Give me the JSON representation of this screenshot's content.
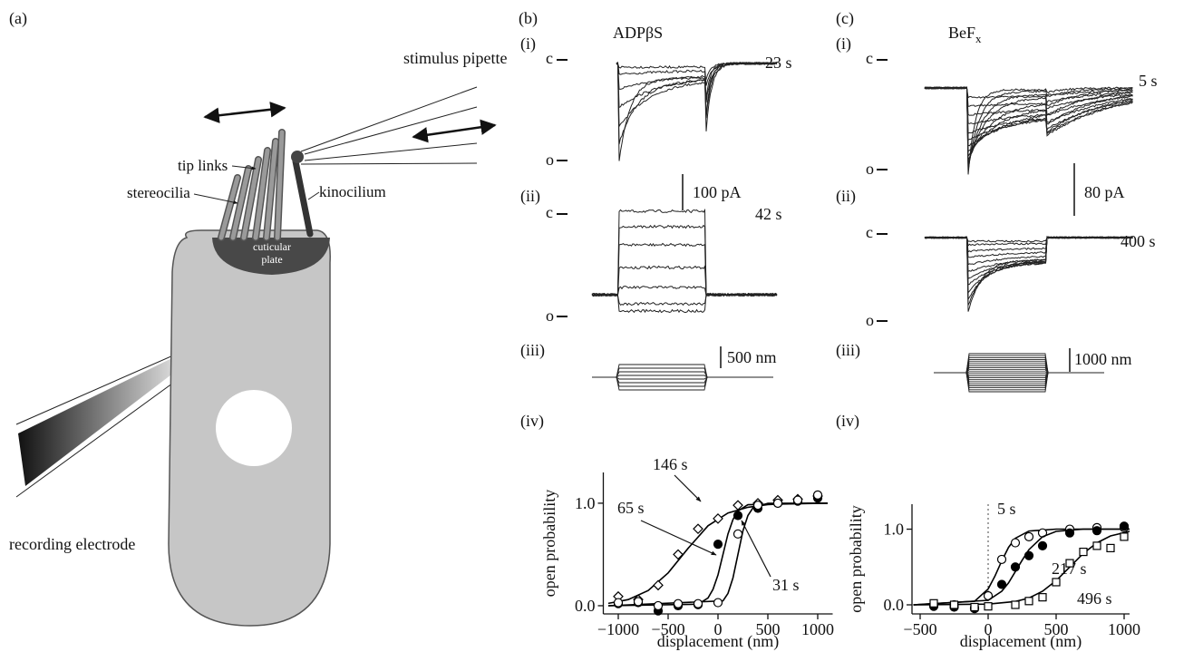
{
  "panel_a": {
    "label": "(a)",
    "stimulus_pipette": "stimulus pipette",
    "tip_links": "tip links",
    "stereocilia": "stereocilia",
    "kinocilium": "kinocilium",
    "cuticular_plate": [
      "cuticular",
      "plate"
    ],
    "recording_electrode": "recording electrode"
  },
  "panel_b": {
    "label": "(b)",
    "i": {
      "label": "(i)",
      "drug": "ADPβS",
      "closed": "c",
      "open": "o",
      "time": "23 s"
    },
    "scale_current": "100 pA",
    "ii": {
      "label": "(ii)",
      "closed": "c",
      "open": "o",
      "time": "42 s"
    },
    "iii": {
      "label": "(iii)",
      "scale": "500 nm"
    },
    "iv": {
      "label": "(iv)"
    }
  },
  "panel_c": {
    "label": "(c)",
    "i": {
      "label": "(i)",
      "drug": {
        "main": "BeF",
        "sub": "x"
      },
      "closed": "c",
      "open": "o",
      "time": "5 s"
    },
    "scale_current": "80 pA",
    "ii": {
      "label": "(ii)",
      "closed": "c",
      "open": "o",
      "time": "400 s"
    },
    "iii": {
      "label": "(iii)",
      "scale": "1000 nm"
    },
    "iv": {
      "label": "(iv)"
    }
  },
  "chart_data": [
    {
      "type": "scatter",
      "xlabel": "displacement (nm)",
      "ylabel": "open probability",
      "xlim": [
        -1150,
        1150
      ],
      "ylim": [
        -0.08,
        1.3
      ],
      "xticks": [
        {
          "value": -1000,
          "label": "−1000"
        },
        {
          "value": -500,
          "label": "−500"
        },
        0,
        500,
        1000
      ],
      "yticks": [
        {
          "value": 0,
          "label": "0.0"
        },
        {
          "value": 1,
          "label": "1.0"
        }
      ],
      "series": [
        {
          "name": "146 s",
          "color": "#000000",
          "marker": "diamond",
          "x": [
            -1000,
            -800,
            -600,
            -400,
            -200,
            0,
            200,
            400,
            600,
            800,
            1000
          ],
          "values": [
            0.09,
            0.06,
            0.2,
            0.5,
            0.75,
            0.85,
            0.98,
            1.0,
            1.03,
            1.04,
            1.07
          ],
          "fit_x": [
            -1100,
            -900,
            -700,
            -500,
            -300,
            -100,
            100,
            300,
            500,
            700,
            900,
            1100
          ],
          "fit_values": [
            0.023,
            0.06,
            0.148,
            0.32,
            0.56,
            0.78,
            0.905,
            0.96,
            0.986,
            0.995,
            0.998,
            0.999
          ]
        },
        {
          "name": "65 s",
          "color": "#000000",
          "marker": "circle-filled",
          "x": [
            -1000,
            -800,
            -600,
            -400,
            -200,
            0,
            200,
            400,
            600,
            800,
            1000
          ],
          "values": [
            0.02,
            0.03,
            -0.05,
            0.0,
            0.01,
            0.6,
            0.88,
            0.95,
            1.0,
            1.02,
            1.05
          ],
          "fit_x": [
            -1100,
            -200,
            -100,
            -50,
            0,
            50,
            100,
            150,
            200,
            300,
            1100
          ],
          "fit_values": [
            0.0,
            0.015,
            0.076,
            0.16,
            0.3,
            0.5,
            0.7,
            0.84,
            0.924,
            0.985,
            1.0
          ]
        },
        {
          "name": "31 s",
          "color": "#000000",
          "marker": "circle-open",
          "x": [
            -1000,
            -800,
            -600,
            -400,
            -200,
            0,
            200,
            400,
            600,
            800,
            1000
          ],
          "values": [
            0.03,
            0.04,
            0.0,
            0.02,
            0.02,
            0.03,
            0.7,
            0.98,
            1.0,
            1.03,
            1.08
          ],
          "fit_x": [
            -1100,
            50,
            100,
            150,
            200,
            250,
            300,
            350,
            500,
            1100
          ],
          "fit_values": [
            0.0,
            0.047,
            0.12,
            0.27,
            0.5,
            0.73,
            0.88,
            0.953,
            0.998,
            1.0
          ]
        }
      ]
    },
    {
      "type": "scatter",
      "xlabel": "displacement (nm)",
      "ylabel": "open probability",
      "xlim": [
        -560,
        1040
      ],
      "ylim": [
        -0.12,
        1.33
      ],
      "refline_x": 0,
      "xticks": [
        {
          "value": -500,
          "label": "−500"
        },
        0,
        500,
        1000
      ],
      "yticks": [
        {
          "value": 0,
          "label": "0.0"
        },
        {
          "value": 1,
          "label": "1.0"
        }
      ],
      "series": [
        {
          "name": "5 s",
          "color": "#000000",
          "marker": "circle-open",
          "x": [
            -400,
            -250,
            -100,
            0,
            100,
            200,
            300,
            400,
            600,
            800,
            1000
          ],
          "values": [
            0.0,
            0.0,
            -0.04,
            0.12,
            0.6,
            0.82,
            0.9,
            0.95,
            1.0,
            1.02,
            1.02
          ],
          "fit_x": [
            -550,
            -100,
            0,
            50,
            100,
            150,
            200,
            300,
            500,
            1040
          ],
          "fit_values": [
            0.0,
            0.047,
            0.21,
            0.38,
            0.58,
            0.76,
            0.88,
            0.975,
            1.0,
            1.0
          ]
        },
        {
          "name": "217 s",
          "color": "#000000",
          "marker": "circle-filled",
          "x": [
            -400,
            -250,
            -100,
            100,
            200,
            300,
            400,
            600,
            800,
            1000
          ],
          "values": [
            -0.02,
            -0.03,
            -0.05,
            0.27,
            0.5,
            0.65,
            0.78,
            0.95,
            0.98,
            1.04
          ],
          "fit_x": [
            -550,
            0,
            100,
            150,
            200,
            250,
            300,
            400,
            500,
            700,
            1040
          ],
          "fit_values": [
            0.0,
            0.06,
            0.18,
            0.29,
            0.44,
            0.59,
            0.73,
            0.9,
            0.97,
            1.0,
            1.0
          ]
        },
        {
          "name": "496 s",
          "color": "#000000",
          "marker": "square",
          "x": [
            -400,
            -250,
            -100,
            0,
            200,
            300,
            400,
            500,
            600,
            700,
            800,
            900,
            1000
          ],
          "values": [
            0.02,
            0.0,
            -0.03,
            -0.02,
            0.0,
            0.05,
            0.1,
            0.3,
            0.55,
            0.7,
            0.78,
            0.75,
            0.9
          ],
          "fit_x": [
            -550,
            0,
            200,
            300,
            400,
            500,
            600,
            700,
            800,
            900,
            1040
          ],
          "fit_values": [
            0.0,
            0.01,
            0.044,
            0.09,
            0.18,
            0.32,
            0.5,
            0.68,
            0.82,
            0.91,
            0.97
          ]
        }
      ]
    }
  ]
}
